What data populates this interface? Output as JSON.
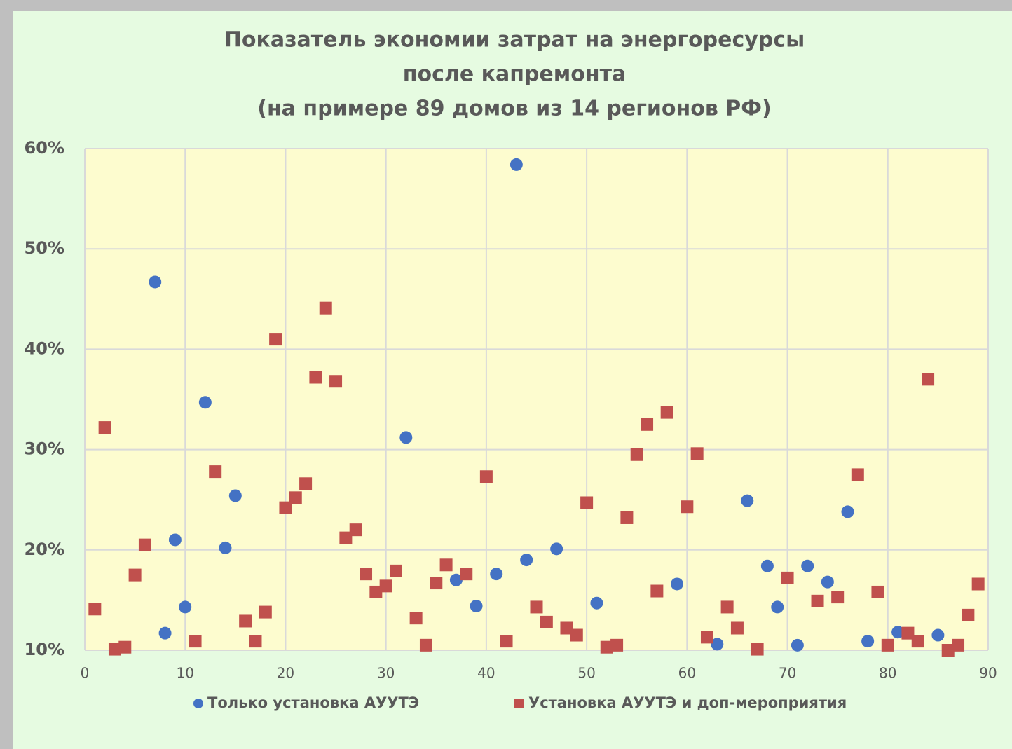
{
  "chart_data": {
    "type": "scatter",
    "title": [
      "Показатель экономии затрат на энергоресурсы",
      "после капремонта",
      "(на примере 89 домов из 14 регионов РФ)"
    ],
    "xlim": [
      0,
      90
    ],
    "xticks": [
      0,
      10,
      20,
      30,
      40,
      50,
      60,
      70,
      80,
      90
    ],
    "ylim": [
      10,
      60
    ],
    "yticks": [
      {
        "value": 10,
        "label": "10%"
      },
      {
        "value": 20,
        "label": "20%"
      },
      {
        "value": 30,
        "label": "30%"
      },
      {
        "value": 40,
        "label": "40%"
      },
      {
        "value": 50,
        "label": "50%"
      },
      {
        "value": 60,
        "label": "60%"
      }
    ],
    "grid": true,
    "legend": "bottom",
    "series": [
      {
        "name": "Только установка АУУТЭ",
        "color": "#4472c4",
        "marker": "circle",
        "x": [
          7,
          8,
          9,
          10,
          12,
          14,
          15,
          32,
          37,
          39,
          41,
          43,
          44,
          47,
          51,
          59,
          63,
          66,
          68,
          69,
          71,
          72,
          74,
          76,
          78,
          81,
          85
        ],
        "values": [
          46.7,
          11.7,
          21.0,
          14.3,
          34.7,
          20.2,
          25.4,
          31.2,
          17.0,
          14.4,
          17.6,
          58.4,
          19.0,
          20.1,
          14.7,
          16.6,
          10.6,
          24.9,
          18.4,
          14.3,
          10.5,
          18.4,
          16.8,
          23.8,
          10.9,
          11.8,
          11.5
        ]
      },
      {
        "name": "Установка АУУТЭ и доп-мероприятия",
        "color": "#c0504d",
        "marker": "square",
        "x": [
          1,
          2,
          3,
          4,
          5,
          6,
          11,
          13,
          16,
          17,
          18,
          19,
          20,
          21,
          22,
          23,
          24,
          25,
          26,
          27,
          28,
          29,
          30,
          31,
          33,
          34,
          35,
          36,
          38,
          40,
          42,
          45,
          46,
          48,
          49,
          50,
          52,
          53,
          54,
          55,
          56,
          57,
          58,
          60,
          61,
          62,
          64,
          65,
          67,
          70,
          73,
          75,
          77,
          79,
          80,
          82,
          83,
          84,
          86,
          87,
          88,
          89
        ],
        "values": [
          14.1,
          32.2,
          10.1,
          10.3,
          17.5,
          20.5,
          10.9,
          27.8,
          12.9,
          10.9,
          13.8,
          41.0,
          24.2,
          25.2,
          26.6,
          37.2,
          44.1,
          36.8,
          21.2,
          22.0,
          17.6,
          15.8,
          16.4,
          17.9,
          13.2,
          10.5,
          16.7,
          18.5,
          17.6,
          27.3,
          10.9,
          14.3,
          12.8,
          12.2,
          11.5,
          24.7,
          10.3,
          10.5,
          23.2,
          29.5,
          32.5,
          15.9,
          33.7,
          24.3,
          29.6,
          11.3,
          14.3,
          12.2,
          10.1,
          17.2,
          14.9,
          15.3,
          27.5,
          15.8,
          10.5,
          11.7,
          10.9,
          37.0,
          10.0,
          10.5,
          13.5,
          16.6
        ]
      }
    ]
  }
}
